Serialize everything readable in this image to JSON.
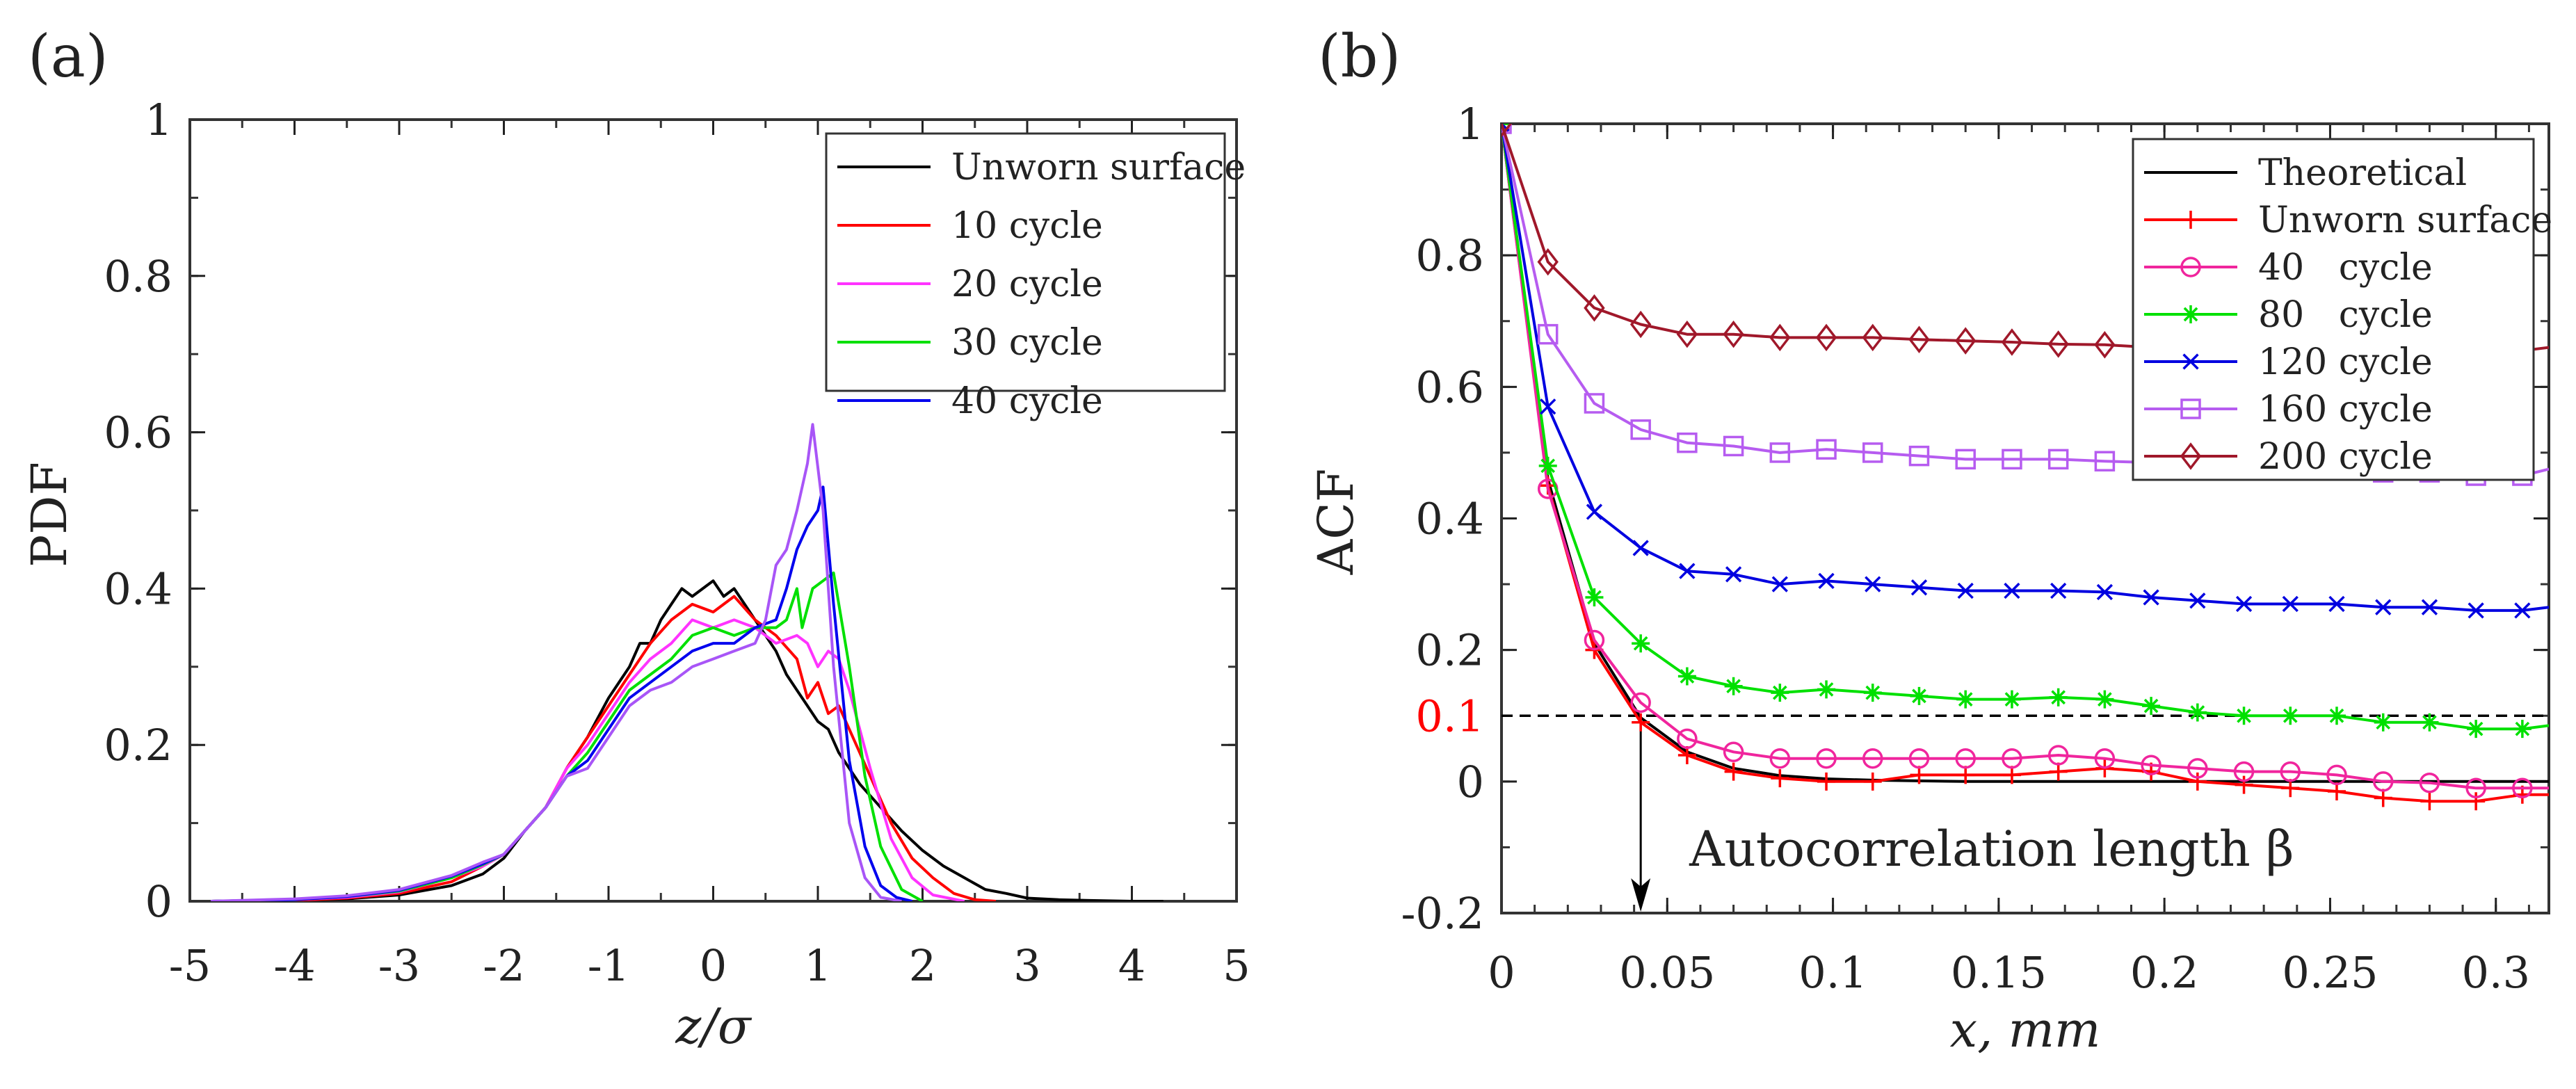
{
  "chart_data": [
    {
      "type": "line",
      "panel_label": "(a)",
      "xlabel": "z/σ",
      "ylabel": "PDF",
      "xlim": [
        -5,
        5
      ],
      "ylim": [
        0,
        1
      ],
      "xticks": [
        "-5",
        "-4",
        "-3",
        "-2",
        "-1",
        "0",
        "1",
        "2",
        "3",
        "4",
        "5"
      ],
      "yticks": [
        "0",
        "0.2",
        "0.4",
        "0.6",
        "0.8",
        "1"
      ],
      "grid": false,
      "legend_position": "top-right",
      "series": [
        {
          "name": "Unworn surface",
          "color": "#000000",
          "x": [
            -4.8,
            -4,
            -3.5,
            -3,
            -2.5,
            -2.2,
            -2,
            -1.8,
            -1.6,
            -1.4,
            -1.2,
            -1,
            -0.8,
            -0.7,
            -0.6,
            -0.5,
            -0.4,
            -0.3,
            -0.2,
            -0.1,
            0,
            0.1,
            0.2,
            0.3,
            0.4,
            0.5,
            0.6,
            0.7,
            0.8,
            0.9,
            1,
            1.1,
            1.2,
            1.4,
            1.6,
            1.8,
            2,
            2.2,
            2.4,
            2.6,
            2.8,
            3,
            3.3,
            3.6,
            4,
            4.3
          ],
          "y": [
            0,
            0.001,
            0.003,
            0.008,
            0.02,
            0.035,
            0.055,
            0.09,
            0.12,
            0.17,
            0.21,
            0.26,
            0.3,
            0.33,
            0.33,
            0.36,
            0.38,
            0.4,
            0.39,
            0.4,
            0.41,
            0.39,
            0.4,
            0.38,
            0.36,
            0.34,
            0.32,
            0.29,
            0.27,
            0.25,
            0.23,
            0.22,
            0.19,
            0.15,
            0.12,
            0.09,
            0.065,
            0.045,
            0.03,
            0.015,
            0.01,
            0.004,
            0.002,
            0.001,
            0,
            0
          ]
        },
        {
          "name": "10 cycle",
          "color": "#ff0000",
          "x": [
            -4.8,
            -4,
            -3.5,
            -3,
            -2.5,
            -2.2,
            -2,
            -1.8,
            -1.6,
            -1.4,
            -1.2,
            -1,
            -0.8,
            -0.6,
            -0.4,
            -0.2,
            0,
            0.2,
            0.4,
            0.6,
            0.8,
            0.9,
            1,
            1.1,
            1.2,
            1.3,
            1.5,
            1.7,
            1.9,
            2.1,
            2.3,
            2.5,
            2.7
          ],
          "y": [
            0,
            0.001,
            0.004,
            0.01,
            0.025,
            0.045,
            0.06,
            0.09,
            0.12,
            0.17,
            0.21,
            0.25,
            0.29,
            0.33,
            0.36,
            0.38,
            0.37,
            0.39,
            0.36,
            0.34,
            0.31,
            0.26,
            0.28,
            0.24,
            0.25,
            0.22,
            0.16,
            0.1,
            0.055,
            0.03,
            0.01,
            0.002,
            0
          ]
        },
        {
          "name": "20 cycle",
          "color": "#ff33ff",
          "x": [
            -4.8,
            -4,
            -3.5,
            -3,
            -2.5,
            -2.2,
            -2,
            -1.8,
            -1.6,
            -1.4,
            -1.2,
            -1,
            -0.8,
            -0.6,
            -0.4,
            -0.2,
            0,
            0.2,
            0.4,
            0.6,
            0.8,
            0.9,
            1,
            1.1,
            1.2,
            1.3,
            1.5,
            1.7,
            1.9,
            2.1,
            2.4
          ],
          "y": [
            0,
            0.002,
            0.005,
            0.012,
            0.03,
            0.045,
            0.06,
            0.09,
            0.12,
            0.17,
            0.2,
            0.24,
            0.28,
            0.31,
            0.33,
            0.36,
            0.35,
            0.36,
            0.35,
            0.33,
            0.34,
            0.33,
            0.3,
            0.32,
            0.31,
            0.27,
            0.17,
            0.08,
            0.03,
            0.008,
            0
          ]
        },
        {
          "name": "30 cycle",
          "color": "#00e000",
          "x": [
            -4.8,
            -4,
            -3.5,
            -3,
            -2.5,
            -2.2,
            -2,
            -1.8,
            -1.6,
            -1.4,
            -1.2,
            -1,
            -0.8,
            -0.6,
            -0.4,
            -0.2,
            0,
            0.2,
            0.4,
            0.6,
            0.7,
            0.8,
            0.85,
            0.95,
            1.05,
            1.15,
            1.3,
            1.45,
            1.6,
            1.8,
            2.0
          ],
          "y": [
            0,
            0.002,
            0.006,
            0.013,
            0.03,
            0.047,
            0.06,
            0.09,
            0.12,
            0.16,
            0.19,
            0.23,
            0.27,
            0.29,
            0.31,
            0.34,
            0.35,
            0.34,
            0.35,
            0.35,
            0.36,
            0.4,
            0.35,
            0.4,
            0.41,
            0.42,
            0.3,
            0.16,
            0.07,
            0.015,
            0
          ]
        },
        {
          "name": "40 cycle",
          "color": "#0000ee",
          "x": [
            -4.8,
            -4,
            -3.5,
            -3,
            -2.5,
            -2.2,
            -2,
            -1.8,
            -1.6,
            -1.4,
            -1.2,
            -1,
            -0.8,
            -0.6,
            -0.4,
            -0.2,
            0,
            0.2,
            0.4,
            0.6,
            0.7,
            0.8,
            0.9,
            1.0,
            1.05,
            1.15,
            1.3,
            1.45,
            1.6,
            1.75,
            1.9
          ],
          "y": [
            0,
            0.002,
            0.006,
            0.014,
            0.032,
            0.048,
            0.06,
            0.09,
            0.12,
            0.16,
            0.18,
            0.22,
            0.26,
            0.28,
            0.3,
            0.32,
            0.33,
            0.33,
            0.35,
            0.36,
            0.4,
            0.45,
            0.48,
            0.5,
            0.53,
            0.38,
            0.18,
            0.07,
            0.02,
            0.005,
            0
          ]
        },
        {
          "name": "",
          "color": "#a855f7",
          "x": [
            -4.8,
            -4,
            -3.5,
            -3,
            -2.5,
            -2.2,
            -2,
            -1.8,
            -1.6,
            -1.4,
            -1.2,
            -1,
            -0.8,
            -0.6,
            -0.4,
            -0.2,
            0,
            0.2,
            0.4,
            0.5,
            0.6,
            0.7,
            0.8,
            0.9,
            0.95,
            1.05,
            1.15,
            1.3,
            1.45,
            1.6,
            1.8
          ],
          "y": [
            0,
            0.003,
            0.007,
            0.015,
            0.033,
            0.05,
            0.06,
            0.09,
            0.12,
            0.16,
            0.17,
            0.21,
            0.25,
            0.27,
            0.28,
            0.3,
            0.31,
            0.32,
            0.33,
            0.36,
            0.43,
            0.45,
            0.5,
            0.56,
            0.61,
            0.5,
            0.3,
            0.1,
            0.03,
            0.005,
            0
          ]
        }
      ]
    },
    {
      "type": "line",
      "panel_label": "(b)",
      "xlabel": "x, mm",
      "ylabel": "ACF",
      "xlim": [
        0,
        0.316
      ],
      "ylim": [
        -0.2,
        1
      ],
      "xticks": [
        "0",
        "0.05",
        "0.1",
        "0.15",
        "0.2",
        "0.25",
        "0.3"
      ],
      "yticks": [
        "-0.2",
        "0",
        "0.2",
        "0.4",
        "0.6",
        "0.8",
        "1"
      ],
      "threshold": {
        "value": 0.1,
        "label": "0.1",
        "color": "#ff0000"
      },
      "annotation": {
        "text": "Autocorrelation length β",
        "arrow_x": 0.042
      },
      "grid": false,
      "legend_position": "top-right",
      "x": [
        0,
        0.014,
        0.028,
        0.042,
        0.056,
        0.07,
        0.084,
        0.098,
        0.112,
        0.126,
        0.14,
        0.154,
        0.168,
        0.182,
        0.196,
        0.21,
        0.224,
        0.238,
        0.252,
        0.266,
        0.28,
        0.294,
        0.308,
        0.316
      ],
      "series": [
        {
          "name": "Theoretical",
          "color": "#000000",
          "marker": "none",
          "y": [
            1,
            0.46,
            0.21,
            0.097,
            0.045,
            0.02,
            0.009,
            0.004,
            0.002,
            0.001,
            0,
            0,
            0,
            0,
            0,
            0,
            0,
            0,
            0,
            0,
            0,
            0,
            0,
            0
          ]
        },
        {
          "name": "Unworn surface",
          "color": "#ff0000",
          "marker": "plus",
          "y": [
            1,
            0.45,
            0.2,
            0.09,
            0.04,
            0.015,
            0.005,
            0,
            0,
            0.01,
            0.01,
            0.01,
            0.015,
            0.02,
            0.015,
            0,
            -0.005,
            -0.01,
            -0.015,
            -0.025,
            -0.03,
            -0.03,
            -0.02,
            -0.02
          ]
        },
        {
          "name": "40   cycle",
          "color": "#f0259d",
          "marker": "circle",
          "y": [
            1,
            0.445,
            0.215,
            0.12,
            0.065,
            0.045,
            0.035,
            0.035,
            0.035,
            0.035,
            0.035,
            0.035,
            0.04,
            0.035,
            0.025,
            0.02,
            0.015,
            0.015,
            0.01,
            0,
            -0.002,
            -0.01,
            -0.01,
            -0.01
          ]
        },
        {
          "name": "80   cycle",
          "color": "#00e000",
          "marker": "star",
          "y": [
            1,
            0.48,
            0.28,
            0.21,
            0.16,
            0.145,
            0.135,
            0.14,
            0.135,
            0.13,
            0.125,
            0.125,
            0.128,
            0.125,
            0.115,
            0.105,
            0.1,
            0.1,
            0.1,
            0.09,
            0.09,
            0.08,
            0.08,
            0.085
          ]
        },
        {
          "name": "120 cycle",
          "color": "#0000e0",
          "marker": "x",
          "y": [
            1,
            0.57,
            0.41,
            0.355,
            0.32,
            0.315,
            0.3,
            0.305,
            0.3,
            0.295,
            0.29,
            0.29,
            0.29,
            0.288,
            0.28,
            0.275,
            0.27,
            0.27,
            0.27,
            0.265,
            0.265,
            0.26,
            0.26,
            0.265
          ]
        },
        {
          "name": "160 cycle",
          "color": "#b65cf0",
          "marker": "square",
          "y": [
            1,
            0.68,
            0.575,
            0.535,
            0.515,
            0.51,
            0.5,
            0.505,
            0.5,
            0.495,
            0.49,
            0.49,
            0.49,
            0.487,
            0.485,
            0.48,
            0.48,
            0.475,
            0.475,
            0.47,
            0.47,
            0.465,
            0.465,
            0.475
          ]
        },
        {
          "name": "200 cycle",
          "color": "#a0182a",
          "marker": "diamond",
          "y": [
            1,
            0.79,
            0.72,
            0.695,
            0.68,
            0.68,
            0.675,
            0.675,
            0.675,
            0.672,
            0.67,
            0.668,
            0.665,
            0.664,
            0.66,
            0.66,
            0.66,
            0.66,
            0.66,
            0.655,
            0.655,
            0.655,
            0.655,
            0.66
          ]
        }
      ]
    }
  ]
}
